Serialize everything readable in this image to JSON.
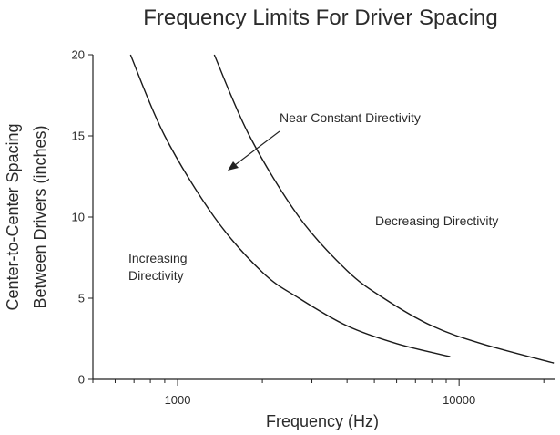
{
  "chart_data": {
    "type": "line",
    "title": "Frequency Limits For Driver Spacing",
    "xlabel": "Frequency (Hz)",
    "ylabel_line1": "Center-to-Center Spacing",
    "ylabel_line2": "Between Drivers (inches)",
    "x_scale": "log",
    "xlim": [
      500,
      22000
    ],
    "ylim": [
      0,
      20
    ],
    "x_ticks": [
      {
        "value": 1000,
        "label": "1000"
      },
      {
        "value": 10000,
        "label": "10000"
      }
    ],
    "y_ticks": [
      {
        "value": 0,
        "label": "0"
      },
      {
        "value": 5,
        "label": "5"
      },
      {
        "value": 10,
        "label": "10"
      },
      {
        "value": 15,
        "label": "15"
      },
      {
        "value": 20,
        "label": "20"
      }
    ],
    "series": [
      {
        "points": [
          [
            680,
            20
          ],
          [
            900,
            15
          ],
          [
            1350,
            10
          ],
          [
            2000,
            6.6
          ],
          [
            2700,
            5
          ],
          [
            4000,
            3.3
          ],
          [
            6000,
            2.2
          ],
          [
            9300,
            1.4
          ]
        ]
      },
      {
        "points": [
          [
            1350,
            20
          ],
          [
            1800,
            15
          ],
          [
            2700,
            10
          ],
          [
            4000,
            6.7
          ],
          [
            5400,
            5
          ],
          [
            8000,
            3.3
          ],
          [
            12000,
            2.2
          ],
          [
            21700,
            1.0
          ]
        ]
      }
    ],
    "annotations": {
      "near_constant": "Near Constant Directivity",
      "decreasing": "Decreasing Directivity",
      "increasing_line1": "Increasing",
      "increasing_line2": "Directivity"
    },
    "grid": false
  }
}
